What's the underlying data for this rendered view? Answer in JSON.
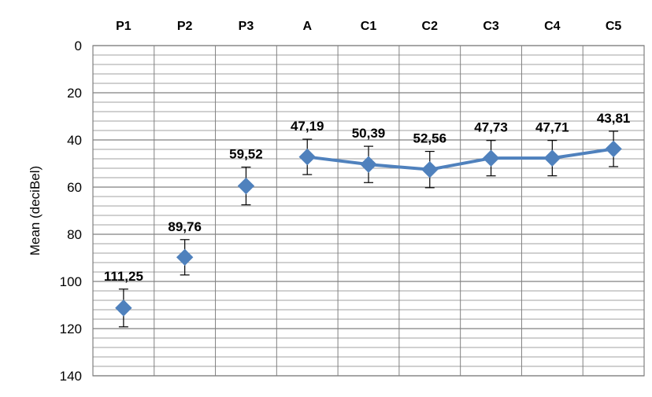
{
  "chart_data": {
    "type": "line",
    "categories": [
      "P1",
      "P2",
      "P3",
      "A",
      "C1",
      "C2",
      "C3",
      "C4",
      "C5"
    ],
    "values": [
      111.25,
      89.76,
      59.52,
      47.19,
      50.39,
      52.56,
      47.73,
      47.71,
      43.81
    ],
    "value_labels": [
      "111,25",
      "89,76",
      "59,52",
      "47,19",
      "50,39",
      "52,56",
      "47,73",
      "47,71",
      "43,81"
    ],
    "error": [
      8,
      7.5,
      8,
      7.5,
      7.7,
      7.7,
      7.5,
      7.5,
      7.5
    ],
    "connected_categories": [
      "A",
      "C1",
      "C2",
      "C3",
      "C4",
      "C5"
    ],
    "ylabel": "Mean (deciBel)",
    "ylim": [
      0,
      140
    ],
    "y_inverted": true,
    "y_ticks": [
      0,
      20,
      40,
      60,
      80,
      100,
      120,
      140
    ],
    "x_axis_position": "top",
    "grid": true,
    "marker": "diamond",
    "series_color": "#4F81BD",
    "grid_color": "#808080"
  }
}
